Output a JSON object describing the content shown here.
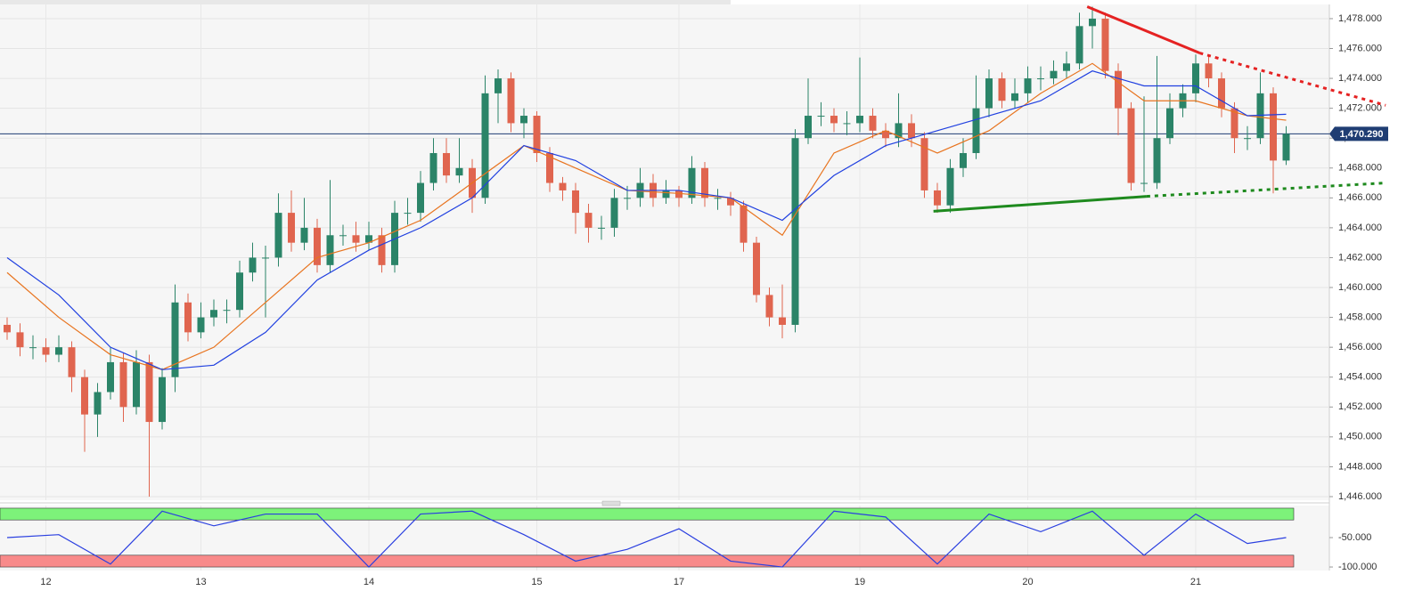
{
  "chart_data": {
    "type": "candlestick",
    "categories": [
      null,
      null,
      null,
      "12",
      null,
      null,
      null,
      null,
      null,
      null,
      null,
      null,
      null,
      null,
      null,
      "13",
      null,
      null,
      null,
      null,
      null,
      null,
      null,
      null,
      null,
      null,
      null,
      null,
      "14",
      null,
      null,
      null,
      null,
      null,
      null,
      null,
      null,
      null,
      null,
      null,
      null,
      "15",
      null,
      null,
      null,
      null,
      null,
      null,
      null,
      null,
      null,
      null,
      "17",
      null,
      null,
      null,
      null,
      null,
      null,
      null,
      null,
      null,
      null,
      null,
      null,
      null,
      "19",
      null,
      null,
      null,
      null,
      null,
      null,
      null,
      null,
      null,
      null,
      null,
      null,
      "20",
      null,
      null,
      null,
      null,
      null,
      null,
      null,
      null,
      null,
      null,
      null,
      null,
      "21",
      null,
      null,
      null,
      null,
      null,
      null,
      null
    ],
    "open": [
      1457.5,
      1457,
      1456,
      1456,
      1455.5,
      1456,
      1454,
      1451.5,
      1453,
      1455,
      1452,
      1455,
      1451,
      1454,
      1459,
      1457,
      1458,
      1458.5,
      1458.5,
      1461,
      1462,
      1462,
      1465,
      1463,
      1464,
      1461.5,
      1463.5,
      1463.5,
      1463,
      1463.5,
      1461.5,
      1465,
      1465,
      1467,
      1469,
      1467.5,
      1468,
      1466,
      1473,
      1474,
      1471,
      1471.5,
      1469,
      1467,
      1466.5,
      1465,
      1464,
      1464,
      1466,
      1466,
      1467,
      1466,
      1466.5,
      1466,
      1468,
      1466,
      1466,
      1465.5,
      1463,
      1459.5,
      1458,
      1457.5,
      1470,
      1471.5,
      1471.5,
      1471,
      1471,
      1471.5,
      1470.5,
      1470,
      1471,
      1470,
      1466.5,
      1465.5,
      1468,
      1469,
      1472,
      1474,
      1472.5,
      1473,
      1474,
      1474,
      1474.5,
      1475,
      1477.5,
      1478,
      1474.5,
      1472,
      1467,
      1467,
      1470,
      1472,
      1473,
      1475,
      1474,
      1472,
      1470,
      1470,
      1473,
      1468.5
    ],
    "high": [
      1458,
      1457.6,
      1456.8,
      1456.6,
      1456.8,
      1456.4,
      1454.5,
      1453.6,
      1456,
      1455.6,
      1455.8,
      1455.5,
      1454.6,
      1460.2,
      1459.6,
      1459,
      1459.2,
      1459.2,
      1461.8,
      1463,
      1462.8,
      1466.3,
      1466.5,
      1466,
      1464.6,
      1467.2,
      1464.2,
      1464.4,
      1464.4,
      1464,
      1465.8,
      1466,
      1467.8,
      1470,
      1470,
      1470,
      1468.6,
      1474.2,
      1474.6,
      1474.4,
      1472,
      1471.8,
      1469.4,
      1467.4,
      1467,
      1465.6,
      1464.8,
      1466.6,
      1466.8,
      1468,
      1467.6,
      1467.2,
      1466.8,
      1468.8,
      1468.4,
      1466.6,
      1466.4,
      1465.8,
      1463.4,
      1460,
      1460.2,
      1470.6,
      1474,
      1472.4,
      1472,
      1471.8,
      1475.4,
      1472,
      1471,
      1473,
      1471.6,
      1470.4,
      1467,
      1468.6,
      1470,
      1474.2,
      1474.6,
      1474.4,
      1474,
      1474.8,
      1474.8,
      1475.2,
      1475.8,
      1478.4,
      1478.8,
      1478.4,
      1475,
      1472.4,
      1472.8,
      1475.5,
      1473,
      1473.6,
      1475.6,
      1475.6,
      1474.4,
      1472.4,
      1470.8,
      1474.4,
      1473.4,
      1470.8
    ],
    "low": [
      1456.5,
      1455.4,
      1455.2,
      1455,
      1455,
      1453,
      1449,
      1450,
      1452.5,
      1451,
      1451.5,
      1446,
      1450.5,
      1453,
      1456.4,
      1456.6,
      1457.4,
      1457.6,
      1458,
      1460.4,
      1458,
      1461.4,
      1462.4,
      1462.5,
      1461,
      1461,
      1462.8,
      1462.4,
      1462.5,
      1461,
      1461,
      1464.2,
      1464.4,
      1466.5,
      1467,
      1467,
      1465,
      1465.6,
      1471,
      1470.4,
      1470,
      1468.4,
      1466.4,
      1465.8,
      1463.6,
      1463,
      1463.2,
      1463.4,
      1465.2,
      1465.4,
      1465.4,
      1465.6,
      1465.4,
      1465.6,
      1465.4,
      1465.2,
      1464.8,
      1462.4,
      1459,
      1457.4,
      1456.6,
      1457,
      1469.6,
      1470.8,
      1470.4,
      1470.2,
      1470.4,
      1470,
      1469.4,
      1469.4,
      1469.4,
      1466,
      1465,
      1465,
      1467.4,
      1468.6,
      1471.4,
      1472,
      1472,
      1472.4,
      1473.2,
      1473.6,
      1474,
      1474.6,
      1476,
      1474,
      1470.2,
      1466.5,
      1466.4,
      1466.6,
      1469.6,
      1471.4,
      1472.4,
      1473.4,
      1471.4,
      1469,
      1469.2,
      1469.6,
      1466.3,
      1468.2
    ],
    "close": [
      1457,
      1456,
      1456,
      1455.5,
      1456,
      1454,
      1451.5,
      1453,
      1455,
      1452,
      1455,
      1451,
      1454,
      1459,
      1457,
      1458,
      1458.5,
      1458.5,
      1461,
      1462,
      1462,
      1465,
      1463,
      1464,
      1461.5,
      1463.5,
      1463.5,
      1463,
      1463.5,
      1461.5,
      1465,
      1465,
      1467,
      1469,
      1467.5,
      1468,
      1466,
      1473,
      1474,
      1471,
      1471.5,
      1469,
      1467,
      1466.5,
      1465,
      1464,
      1464,
      1466,
      1466,
      1467,
      1466,
      1466.5,
      1466,
      1468,
      1466,
      1466,
      1465.5,
      1463,
      1459.5,
      1458,
      1457.5,
      1470,
      1471.5,
      1471.5,
      1471,
      1471,
      1471.5,
      1470.5,
      1470,
      1471,
      1470,
      1466.5,
      1465.5,
      1468,
      1469,
      1472,
      1474,
      1472.5,
      1473,
      1474,
      1474,
      1474.5,
      1475,
      1477.5,
      1478,
      1474.5,
      1472,
      1467,
      1467,
      1470,
      1472,
      1473,
      1475,
      1474,
      1472,
      1470,
      1470,
      1473,
      1468.5,
      1470.29
    ],
    "up_color": "#2b8468",
    "down_color": "#e0654f",
    "ylim": [
      1445.76,
      1478.95
    ],
    "yticks": [
      {
        "value": 1446,
        "label": "1,446.000"
      },
      {
        "value": 1448,
        "label": "1,448.000"
      },
      {
        "value": 1450,
        "label": "1,450.000"
      },
      {
        "value": 1452,
        "label": "1,452.000"
      },
      {
        "value": 1454,
        "label": "1,454.000"
      },
      {
        "value": 1456,
        "label": "1,456.000"
      },
      {
        "value": 1458,
        "label": "1,458.000"
      },
      {
        "value": 1460,
        "label": "1,460.000"
      },
      {
        "value": 1462,
        "label": "1,462.000"
      },
      {
        "value": 1464,
        "label": "1,464.000"
      },
      {
        "value": 1466,
        "label": "1,466.000"
      },
      {
        "value": 1468,
        "label": "1,468.000"
      },
      {
        "value": 1470,
        "label": "1,470.000"
      },
      {
        "value": 1472,
        "label": "1,472.000"
      },
      {
        "value": 1474,
        "label": "1,474.000"
      },
      {
        "value": 1476,
        "label": "1,476.000"
      },
      {
        "value": 1478,
        "label": "1,478.000"
      }
    ],
    "grid": true,
    "last_price": {
      "value": 1470.29,
      "label": "1,470.290",
      "color": "#1f3d73"
    },
    "moving_averages": [
      {
        "color": "#e8741f",
        "x": [
          0,
          4,
          8,
          12,
          16,
          20,
          24,
          28,
          32,
          36,
          40,
          44,
          48,
          52,
          56,
          60,
          64,
          68,
          72,
          76,
          80,
          84,
          88,
          92,
          96,
          99
        ],
        "values": [
          1461,
          1458,
          1455.5,
          1454.5,
          1456,
          1459,
          1462,
          1463,
          1464.5,
          1467,
          1469.5,
          1468,
          1466.5,
          1466.3,
          1466,
          1463.5,
          1469,
          1470.5,
          1469,
          1470.5,
          1473,
          1475,
          1472.5,
          1472.5,
          1471.5,
          1471.2
        ]
      },
      {
        "color": "#2040e0",
        "x": [
          0,
          4,
          8,
          12,
          16,
          20,
          24,
          28,
          32,
          36,
          40,
          44,
          48,
          52,
          56,
          60,
          64,
          68,
          72,
          76,
          80,
          84,
          88,
          92,
          96,
          99
        ],
        "values": [
          1462,
          1459.5,
          1456,
          1454.5,
          1454.8,
          1457,
          1460.5,
          1462.5,
          1464,
          1466,
          1469.5,
          1468.5,
          1466.5,
          1466.5,
          1466,
          1464.5,
          1467.5,
          1469.5,
          1470.5,
          1471.5,
          1472.5,
          1474.5,
          1473.5,
          1473.5,
          1471.5,
          1471.6
        ]
      }
    ],
    "trendlines": [
      {
        "color": "#e52222",
        "solid": [
          [
            83.6,
            1478.8
          ],
          [
            92.3,
            1475.7
          ]
        ],
        "dashed": [
          [
            92.3,
            1475.7
          ],
          [
            106.7,
            1472.2
          ]
        ]
      },
      {
        "color": "#1e8a1e",
        "solid": [
          [
            71.7,
            1465.1
          ],
          [
            88.2,
            1466.1
          ]
        ],
        "dashed": [
          [
            88.2,
            1466.1
          ],
          [
            106.7,
            1467
          ]
        ]
      }
    ],
    "oscillator": {
      "color": "#2a3fe0",
      "ylim": [
        -106,
        4.5
      ],
      "yticks": [
        {
          "value": -50,
          "label": "-50.000"
        },
        {
          "value": -100,
          "label": "-100.000"
        }
      ],
      "bands": [
        {
          "from": -20,
          "to": 0,
          "color": "#7df27a"
        },
        {
          "from": -100,
          "to": -80,
          "color": "#f88a8a"
        }
      ],
      "x": [
        0,
        4,
        8,
        12,
        16,
        20,
        24,
        28,
        32,
        36,
        40,
        44,
        48,
        52,
        56,
        60,
        64,
        68,
        72,
        76,
        80,
        84,
        88,
        92,
        96,
        99
      ],
      "values": [
        -50,
        -45,
        -95,
        -5,
        -30,
        -10,
        -10,
        -100,
        -10,
        -5,
        -45,
        -90,
        -70,
        -35,
        -90,
        -100,
        -5,
        -15,
        -95,
        -10,
        -40,
        -5,
        -80,
        -10,
        -60,
        -50
      ]
    }
  }
}
